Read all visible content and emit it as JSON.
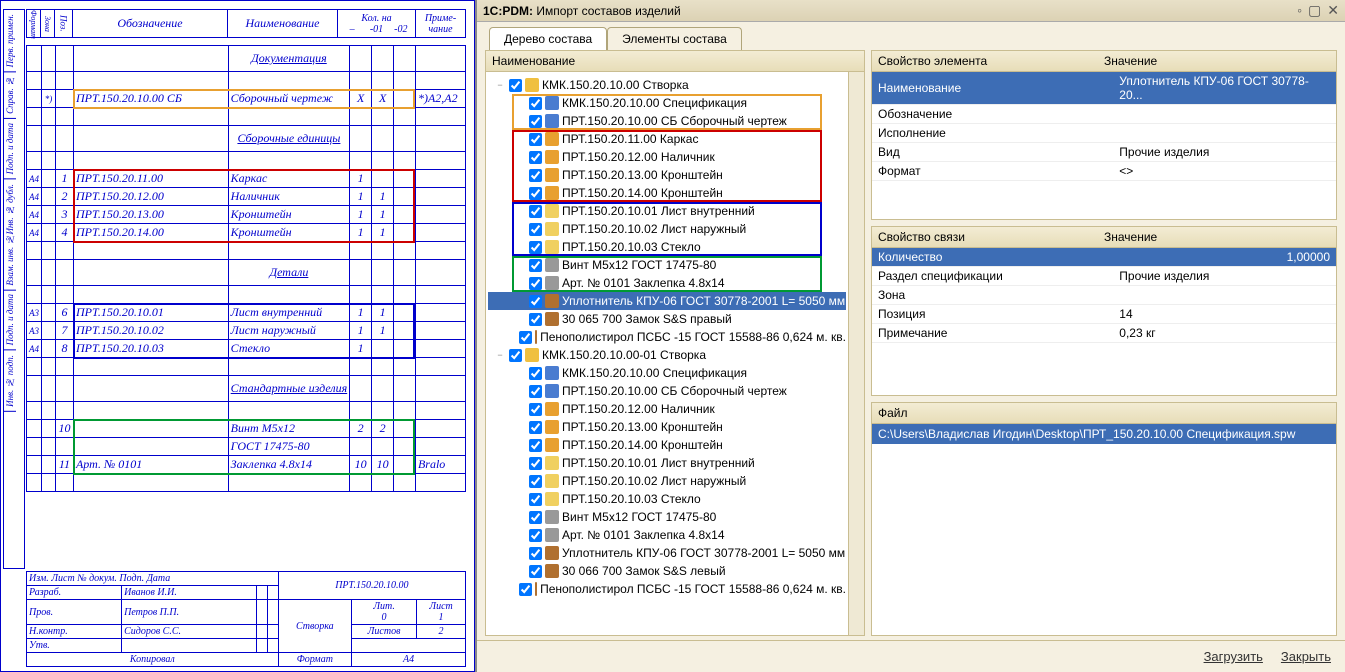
{
  "drawing": {
    "headers": {
      "obz": "Обозначение",
      "naim": "Наименование",
      "kol": "Кол. на",
      "dash": "–",
      "c01": "-01",
      "c02": "-02",
      "prim": "Приме-\nчание"
    },
    "sections": [
      {
        "title": "Документация",
        "ov": "#e8a030",
        "rows": [
          {
            "fmt": "",
            "zona": "*)",
            "poz": "",
            "obz": "ПРТ.150.20.10.00 СБ",
            "naim": "Сборочный чертеж",
            "k1": "X",
            "k2": "X",
            "k3": "",
            "prim": "*)А2,А2"
          }
        ]
      },
      {
        "title": "Сборочные единицы",
        "ov": "#cc0000",
        "rows": [
          {
            "fmt": "А4",
            "poz": "1",
            "obz": "ПРТ.150.20.11.00",
            "naim": "Каркас",
            "k1": "1",
            "k2": "",
            "k3": ""
          },
          {
            "fmt": "А4",
            "poz": "2",
            "obz": "ПРТ.150.20.12.00",
            "naim": "Наличник",
            "k1": "1",
            "k2": "1",
            "k3": ""
          },
          {
            "fmt": "А4",
            "poz": "3",
            "obz": "ПРТ.150.20.13.00",
            "naim": "Кронштейн",
            "k1": "1",
            "k2": "1",
            "k3": ""
          },
          {
            "fmt": "А4",
            "poz": "4",
            "obz": "ПРТ.150.20.14.00",
            "naim": "Кронштейн",
            "k1": "1",
            "k2": "1",
            "k3": ""
          }
        ]
      },
      {
        "title": "Детали",
        "ov": "#0000cc",
        "rows": [
          {
            "fmt": "А3",
            "poz": "6",
            "obz": "ПРТ.150.20.10.01",
            "naim": "Лист внутренний",
            "k1": "1",
            "k2": "1",
            "k3": ""
          },
          {
            "fmt": "А3",
            "poz": "7",
            "obz": "ПРТ.150.20.10.02",
            "naim": "Лист наружный",
            "k1": "1",
            "k2": "1",
            "k3": ""
          },
          {
            "fmt": "А4",
            "poz": "8",
            "obz": "ПРТ.150.20.10.03",
            "naim": "Стекло",
            "k1": "1",
            "k2": "",
            "k3": ""
          }
        ]
      },
      {
        "title": "Стандартные изделия",
        "ov": "#009933",
        "rows": [
          {
            "poz": "10",
            "obz": "",
            "naim": "Винт М5х12",
            "k1": "2",
            "k2": "2",
            "k3": ""
          },
          {
            "poz": "",
            "obz": "",
            "naim": "ГОСТ 17475-80",
            "k1": "",
            "k2": "",
            "k3": ""
          },
          {
            "poz": "11",
            "obz": "Арт. № 0101",
            "naim": "Заклепка 4.8х14",
            "k1": "10",
            "k2": "10",
            "k3": "",
            "prim": "Bralo"
          }
        ]
      }
    ],
    "side_labels": [
      "Перв. примен.",
      "Справ. №",
      "Подп. и дата",
      "Взам. инв. №Инв. № дубл.",
      "Подп. и дата",
      "Инв. № подп."
    ],
    "stamp": {
      "num": "ПРТ.150.20.10.00",
      "title": "Створка",
      "rows": [
        {
          "r": "Разраб.",
          "n": "Иванов И.И."
        },
        {
          "r": "Пров.",
          "n": "Петров П.П."
        },
        {
          "r": "Н.контр.",
          "n": "Сидоров С.С."
        },
        {
          "r": "Утв.",
          "n": ""
        }
      ],
      "hdr": [
        "Изм.",
        "Лист",
        "№ докум.",
        "Подп.",
        "Дата"
      ],
      "copy": "Копировал",
      "fmt": "Формат",
      "a4": "А4",
      "lit": "Лит.",
      "list": "Лист",
      "listov": "Листов",
      "l0": "0",
      "l1": "1",
      "l2": "2"
    }
  },
  "window": {
    "title_prefix": "1C:PDM:",
    "title": " Импорт составов изделий"
  },
  "tabs": [
    {
      "label": "Дерево состава",
      "active": true
    },
    {
      "label": "Элементы состава",
      "active": false
    }
  ],
  "tree": {
    "header": "Наименование",
    "roots": [
      {
        "exp": "−",
        "ic": "root",
        "label": "КМК.150.20.10.00 Створка",
        "depth": 0,
        "children": [
          {
            "ic": "spec",
            "label": "КМК.150.20.10.00 Спецификация",
            "depth": 1,
            "ov": "#e8a030"
          },
          {
            "ic": "spec",
            "label": "ПРТ.150.20.10.00 СБ Сборочный чертеж",
            "depth": 1,
            "ov": "#e8a030"
          },
          {
            "ic": "asm",
            "label": "ПРТ.150.20.11.00 Каркас",
            "depth": 1,
            "ov": "#cc0000"
          },
          {
            "ic": "asm",
            "label": "ПРТ.150.20.12.00 Наличник",
            "depth": 1,
            "ov": "#cc0000"
          },
          {
            "ic": "asm",
            "label": "ПРТ.150.20.13.00 Кронштейн",
            "depth": 1,
            "ov": "#cc0000"
          },
          {
            "ic": "asm",
            "label": "ПРТ.150.20.14.00 Кронштейн",
            "depth": 1,
            "ov": "#cc0000"
          },
          {
            "ic": "part",
            "label": "ПРТ.150.20.10.01 Лист внутренний",
            "depth": 1,
            "ov": "#0000cc"
          },
          {
            "ic": "part",
            "label": "ПРТ.150.20.10.02 Лист наружный",
            "depth": 1,
            "ov": "#0000cc"
          },
          {
            "ic": "part",
            "label": "ПРТ.150.20.10.03 Стекло",
            "depth": 1,
            "ov": "#0000cc"
          },
          {
            "ic": "std",
            "label": "Винт М5х12 ГОСТ 17475-80",
            "depth": 1,
            "ov": "#009933"
          },
          {
            "ic": "std",
            "label": "Арт. № 0101 Заклепка 4.8х14",
            "depth": 1,
            "ov": "#009933"
          },
          {
            "ic": "oth",
            "label": "Уплотнитель КПУ-06 ГОСТ 30778-2001 L= 5050 мм",
            "depth": 1,
            "sel": true
          },
          {
            "ic": "oth",
            "label": "30 065 700 Замок S&S правый",
            "depth": 1
          },
          {
            "ic": "oth",
            "label": "Пенополистирол ПСБС -15 ГОСТ 15588-86 0,624 м. кв.",
            "depth": 1
          }
        ]
      },
      {
        "exp": "−",
        "ic": "root",
        "label": "КМК.150.20.10.00-01 Створка",
        "depth": 0,
        "children": [
          {
            "ic": "spec",
            "label": "КМК.150.20.10.00 Спецификация",
            "depth": 1
          },
          {
            "ic": "spec",
            "label": "ПРТ.150.20.10.00 СБ Сборочный чертеж",
            "depth": 1
          },
          {
            "ic": "asm",
            "label": "ПРТ.150.20.12.00 Наличник",
            "depth": 1
          },
          {
            "ic": "asm",
            "label": "ПРТ.150.20.13.00 Кронштейн",
            "depth": 1
          },
          {
            "ic": "asm",
            "label": "ПРТ.150.20.14.00 Кронштейн",
            "depth": 1
          },
          {
            "ic": "part",
            "label": "ПРТ.150.20.10.01 Лист внутренний",
            "depth": 1
          },
          {
            "ic": "part",
            "label": "ПРТ.150.20.10.02 Лист наружный",
            "depth": 1
          },
          {
            "ic": "part",
            "label": "ПРТ.150.20.10.03 Стекло",
            "depth": 1
          },
          {
            "ic": "std",
            "label": "Винт М5х12 ГОСТ 17475-80",
            "depth": 1
          },
          {
            "ic": "std",
            "label": "Арт. № 0101 Заклепка 4.8х14",
            "depth": 1
          },
          {
            "ic": "oth",
            "label": "Уплотнитель КПУ-06 ГОСТ 30778-2001 L= 5050 мм",
            "depth": 1
          },
          {
            "ic": "oth",
            "label": "30 066 700 Замок S&S левый",
            "depth": 1
          },
          {
            "ic": "oth",
            "label": "Пенополистирол ПСБС -15 ГОСТ 15588-86 0,624 м. кв.",
            "depth": 1
          }
        ]
      }
    ]
  },
  "elem_props": {
    "header": [
      "Свойство элемента",
      "Значение"
    ],
    "rows": [
      {
        "k": "Наименование",
        "v": "Уплотнитель КПУ-06 ГОСТ 30778-20...",
        "sel": true
      },
      {
        "k": "Обозначение",
        "v": ""
      },
      {
        "k": "Исполнение",
        "v": ""
      },
      {
        "k": "Вид",
        "v": "Прочие изделия"
      },
      {
        "k": "Формат",
        "v": "<>"
      }
    ]
  },
  "link_props": {
    "header": [
      "Свойство связи",
      "Значение"
    ],
    "rows": [
      {
        "k": "Количество",
        "v": "1,00000",
        "sel": true,
        "right": true
      },
      {
        "k": "Раздел спецификации",
        "v": "Прочие изделия"
      },
      {
        "k": "Зона",
        "v": ""
      },
      {
        "k": "Позиция",
        "v": "14"
      },
      {
        "k": "Примечание",
        "v": "0,23 кг"
      }
    ]
  },
  "file": {
    "header": "Файл",
    "path": "C:\\Users\\Владислав Игодин\\Desktop\\ПРТ_150.20.10.00   Спецификация.spw"
  },
  "buttons": {
    "load": "Загрузить",
    "close": "Закрыть"
  }
}
